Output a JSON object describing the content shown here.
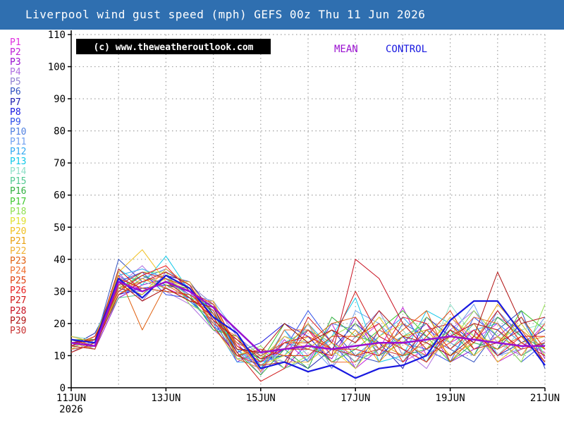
{
  "header": {
    "title": "Liverpool wind gust speed (mph) GEFS 00z Thu 11 Jun 2026"
  },
  "members": [
    {
      "label": "P1",
      "color": "#e030e0"
    },
    {
      "label": "P2",
      "color": "#c020d8"
    },
    {
      "label": "P3",
      "color": "#9a10d0"
    },
    {
      "label": "P4",
      "color": "#b070e0"
    },
    {
      "label": "P5",
      "color": "#9080d0"
    },
    {
      "label": "P6",
      "color": "#3050c0"
    },
    {
      "label": "P7",
      "color": "#2020b0"
    },
    {
      "label": "P8",
      "color": "#1818e0"
    },
    {
      "label": "P9",
      "color": "#3050e8"
    },
    {
      "label": "P10",
      "color": "#5080e0"
    },
    {
      "label": "P11",
      "color": "#70a0f0"
    },
    {
      "label": "P12",
      "color": "#30a8f0"
    },
    {
      "label": "P13",
      "color": "#10c8e8"
    },
    {
      "label": "P14",
      "color": "#90e0c8"
    },
    {
      "label": "P15",
      "color": "#50c890"
    },
    {
      "label": "P16",
      "color": "#30b040"
    },
    {
      "label": "P17",
      "color": "#40c830"
    },
    {
      "label": "P18",
      "color": "#90e050"
    },
    {
      "label": "P19",
      "color": "#e0e030"
    },
    {
      "label": "P20",
      "color": "#f0c020"
    },
    {
      "label": "P21",
      "color": "#e8a010"
    },
    {
      "label": "P22",
      "color": "#f0b030"
    },
    {
      "label": "P23",
      "color": "#e06010"
    },
    {
      "label": "P24",
      "color": "#f07030"
    },
    {
      "label": "P25",
      "color": "#e04010"
    },
    {
      "label": "P26",
      "color": "#e82020"
    },
    {
      "label": "P27",
      "color": "#d01818"
    },
    {
      "label": "P28",
      "color": "#c81020"
    },
    {
      "label": "P29",
      "color": "#b01010"
    },
    {
      "label": "P30",
      "color": "#c83030"
    }
  ],
  "chart_data": {
    "type": "line",
    "title": "Liverpool wind gust speed (mph) GEFS 00z Thu 11 Jun 2026",
    "xlabel": "",
    "ylabel": "",
    "x": [
      "11JUN",
      "11JUN 12z",
      "12JUN",
      "12JUN 12z",
      "13JUN",
      "13JUN 12z",
      "14JUN",
      "14JUN 12z",
      "15JUN",
      "15JUN 12z",
      "16JUN",
      "16JUN 12z",
      "17JUN",
      "17JUN 12z",
      "18JUN",
      "18JUN 12z",
      "19JUN",
      "19JUN 12z",
      "20JUN",
      "20JUN 12z",
      "21JUN"
    ],
    "x_ticks": [
      {
        "label": "11JUN",
        "sub": "2026"
      },
      {
        "label": "13JUN"
      },
      {
        "label": "15JUN"
      },
      {
        "label": "17JUN"
      },
      {
        "label": "19JUN"
      },
      {
        "label": "21JUN"
      }
    ],
    "ylim": [
      0,
      110
    ],
    "y_ticks": [
      0,
      10,
      20,
      30,
      40,
      50,
      60,
      70,
      80,
      90,
      100,
      110
    ],
    "grid": true,
    "watermark": "(c) www.theweatheroutlook.com",
    "series": [
      {
        "name": "MEAN",
        "color": "#9a10d0",
        "width": 2.5,
        "show_label": true,
        "values": [
          14,
          13,
          33,
          30,
          33,
          30,
          25,
          18,
          11,
          12,
          13,
          12,
          13,
          14,
          14,
          15,
          16,
          15,
          14,
          13,
          13
        ]
      },
      {
        "name": "CONTROL",
        "color": "#1818e0",
        "width": 2.2,
        "show_label": true,
        "values": [
          15,
          14,
          34,
          28,
          35,
          31,
          22,
          17,
          6,
          8,
          5,
          7,
          3,
          6,
          7,
          10,
          21,
          27,
          27,
          17,
          7
        ]
      },
      {
        "name": "P1",
        "color": "#e030e0",
        "width": 1,
        "values": [
          13,
          14,
          30,
          35,
          31,
          28,
          22,
          10,
          8,
          12,
          18,
          10,
          14,
          20,
          8,
          12,
          22,
          15,
          20,
          14,
          11
        ]
      },
      {
        "name": "P2",
        "color": "#c020d8",
        "width": 1,
        "values": [
          12,
          16,
          35,
          30,
          33,
          30,
          20,
          14,
          5,
          15,
          8,
          20,
          6,
          12,
          25,
          10,
          14,
          18,
          8,
          12,
          20
        ]
      },
      {
        "name": "P3",
        "color": "#9a10d0",
        "width": 1,
        "values": [
          14,
          12,
          28,
          32,
          34,
          29,
          24,
          8,
          12,
          6,
          14,
          9,
          22,
          10,
          14,
          20,
          8,
          12,
          16,
          22,
          9
        ]
      },
      {
        "name": "P4",
        "color": "#b070e0",
        "width": 1,
        "values": [
          15,
          13,
          32,
          38,
          30,
          26,
          18,
          12,
          4,
          18,
          10,
          15,
          8,
          16,
          12,
          6,
          18,
          24,
          14,
          10,
          15
        ]
      },
      {
        "name": "P5",
        "color": "#9080d0",
        "width": 1,
        "values": [
          11,
          15,
          36,
          27,
          36,
          32,
          26,
          16,
          10,
          8,
          20,
          6,
          16,
          24,
          10,
          14,
          10,
          16,
          22,
          18,
          12
        ]
      },
      {
        "name": "P6",
        "color": "#3050c0",
        "width": 1,
        "values": [
          16,
          14,
          40,
          33,
          31,
          27,
          21,
          9,
          6,
          14,
          12,
          18,
          10,
          8,
          20,
          16,
          12,
          8,
          18,
          24,
          6
        ]
      },
      {
        "name": "P7",
        "color": "#2020b0",
        "width": 1,
        "values": [
          13,
          17,
          31,
          29,
          35,
          33,
          23,
          13,
          9,
          10,
          6,
          12,
          20,
          14,
          6,
          22,
          16,
          20,
          10,
          14,
          18
        ]
      },
      {
        "name": "P8",
        "color": "#1818e0",
        "width": 1,
        "values": [
          12,
          13,
          29,
          31,
          32,
          30,
          25,
          11,
          14,
          20,
          16,
          8,
          12,
          10,
          16,
          8,
          20,
          14,
          12,
          20,
          10
        ]
      },
      {
        "name": "P9",
        "color": "#3050e8",
        "width": 1,
        "values": [
          14,
          15,
          33,
          36,
          29,
          28,
          19,
          15,
          7,
          12,
          24,
          14,
          6,
          18,
          14,
          12,
          8,
          22,
          16,
          8,
          14
        ]
      },
      {
        "name": "P10",
        "color": "#5080e0",
        "width": 1,
        "values": [
          15,
          12,
          34,
          34,
          37,
          31,
          22,
          10,
          11,
          6,
          9,
          20,
          18,
          12,
          8,
          18,
          14,
          10,
          24,
          16,
          8
        ]
      },
      {
        "name": "P11",
        "color": "#70a0f0",
        "width": 1,
        "values": [
          13,
          14,
          30,
          30,
          33,
          29,
          27,
          17,
          5,
          16,
          14,
          6,
          24,
          20,
          12,
          10,
          16,
          26,
          10,
          12,
          22
        ]
      },
      {
        "name": "P12",
        "color": "#30a8f0",
        "width": 1,
        "values": [
          12,
          16,
          35,
          37,
          34,
          27,
          20,
          8,
          8,
          10,
          20,
          12,
          10,
          16,
          22,
          14,
          10,
          18,
          20,
          14,
          16
        ]
      },
      {
        "name": "P13",
        "color": "#10c8e8",
        "width": 1,
        "values": [
          14,
          13,
          37,
          32,
          41,
          30,
          24,
          12,
          6,
          18,
          8,
          16,
          28,
          8,
          10,
          24,
          20,
          12,
          14,
          22,
          10
        ]
      },
      {
        "name": "P14",
        "color": "#90e0c8",
        "width": 1,
        "values": [
          16,
          15,
          32,
          33,
          31,
          32,
          21,
          14,
          12,
          8,
          12,
          10,
          14,
          22,
          18,
          8,
          26,
          16,
          10,
          18,
          20
        ]
      },
      {
        "name": "P15",
        "color": "#50c890",
        "width": 1,
        "values": [
          11,
          14,
          28,
          29,
          35,
          28,
          26,
          9,
          10,
          14,
          18,
          14,
          8,
          12,
          16,
          20,
          12,
          20,
          18,
          10,
          14
        ]
      },
      {
        "name": "P16",
        "color": "#30b040",
        "width": 1,
        "values": [
          13,
          12,
          31,
          35,
          32,
          31,
          23,
          11,
          4,
          12,
          6,
          22,
          16,
          14,
          10,
          12,
          18,
          10,
          22,
          16,
          12
        ]
      },
      {
        "name": "P17",
        "color": "#40c830",
        "width": 1,
        "values": [
          15,
          15,
          34,
          31,
          30,
          29,
          18,
          16,
          8,
          20,
          14,
          8,
          12,
          18,
          24,
          16,
          8,
          14,
          12,
          24,
          18
        ]
      },
      {
        "name": "P18",
        "color": "#90e050",
        "width": 1,
        "values": [
          14,
          13,
          30,
          36,
          36,
          26,
          22,
          10,
          13,
          6,
          10,
          16,
          20,
          10,
          14,
          22,
          14,
          24,
          16,
          8,
          26
        ]
      },
      {
        "name": "P19",
        "color": "#e0e030",
        "width": 1,
        "values": [
          12,
          16,
          33,
          30,
          34,
          30,
          25,
          13,
          7,
          10,
          16,
          12,
          6,
          16,
          20,
          12,
          22,
          16,
          14,
          20,
          10
        ]
      },
      {
        "name": "P20",
        "color": "#f0c020",
        "width": 1,
        "values": [
          16,
          14,
          36,
          43,
          33,
          33,
          21,
          15,
          9,
          16,
          12,
          18,
          14,
          22,
          12,
          8,
          16,
          20,
          8,
          14,
          16
        ]
      },
      {
        "name": "P21",
        "color": "#e8a010",
        "width": 1,
        "values": [
          13,
          15,
          29,
          34,
          31,
          27,
          27,
          12,
          11,
          12,
          20,
          10,
          18,
          8,
          16,
          18,
          10,
          14,
          26,
          18,
          12
        ]
      },
      {
        "name": "P22",
        "color": "#f0b030",
        "width": 1,
        "values": [
          14,
          12,
          32,
          29,
          37,
          32,
          19,
          9,
          6,
          8,
          8,
          14,
          10,
          14,
          10,
          14,
          20,
          10,
          16,
          12,
          14
        ]
      },
      {
        "name": "P23",
        "color": "#e06010",
        "width": 1,
        "values": [
          15,
          14,
          35,
          18,
          32,
          28,
          23,
          14,
          10,
          14,
          14,
          20,
          22,
          12,
          18,
          24,
          8,
          16,
          12,
          16,
          8
        ]
      },
      {
        "name": "P24",
        "color": "#f07030",
        "width": 1,
        "values": [
          12,
          13,
          31,
          33,
          35,
          31,
          20,
          16,
          5,
          18,
          18,
          8,
          8,
          18,
          14,
          10,
          14,
          22,
          20,
          10,
          20
        ]
      },
      {
        "name": "P25",
        "color": "#e04010",
        "width": 1,
        "values": [
          14,
          15,
          34,
          31,
          30,
          29,
          24,
          10,
          12,
          10,
          10,
          16,
          16,
          20,
          8,
          16,
          24,
          12,
          14,
          22,
          12
        ]
      },
      {
        "name": "P26",
        "color": "#e82020",
        "width": 1,
        "values": [
          13,
          16,
          30,
          35,
          38,
          30,
          26,
          13,
          8,
          14,
          16,
          12,
          12,
          10,
          22,
          20,
          12,
          18,
          10,
          16,
          16
        ]
      },
      {
        "name": "P27",
        "color": "#d01818",
        "width": 1,
        "values": [
          11,
          14,
          37,
          30,
          33,
          28,
          22,
          11,
          2,
          6,
          22,
          14,
          30,
          16,
          12,
          8,
          18,
          14,
          24,
          14,
          10
        ]
      },
      {
        "name": "P28",
        "color": "#c81020",
        "width": 1,
        "values": [
          15,
          13,
          29,
          33,
          36,
          32,
          21,
          15,
          9,
          12,
          12,
          10,
          40,
          34,
          20,
          12,
          16,
          20,
          18,
          12,
          14
        ]
      },
      {
        "name": "P29",
        "color": "#b01010",
        "width": 1,
        "values": [
          14,
          15,
          33,
          27,
          31,
          27,
          25,
          12,
          11,
          20,
          14,
          18,
          14,
          24,
          16,
          14,
          10,
          16,
          36,
          20,
          22
        ]
      },
      {
        "name": "P30",
        "color": "#c83030",
        "width": 1,
        "values": [
          13,
          12,
          32,
          36,
          34,
          31,
          19,
          10,
          7,
          8,
          18,
          12,
          10,
          12,
          10,
          18,
          20,
          12,
          14,
          18,
          8
        ]
      }
    ]
  }
}
